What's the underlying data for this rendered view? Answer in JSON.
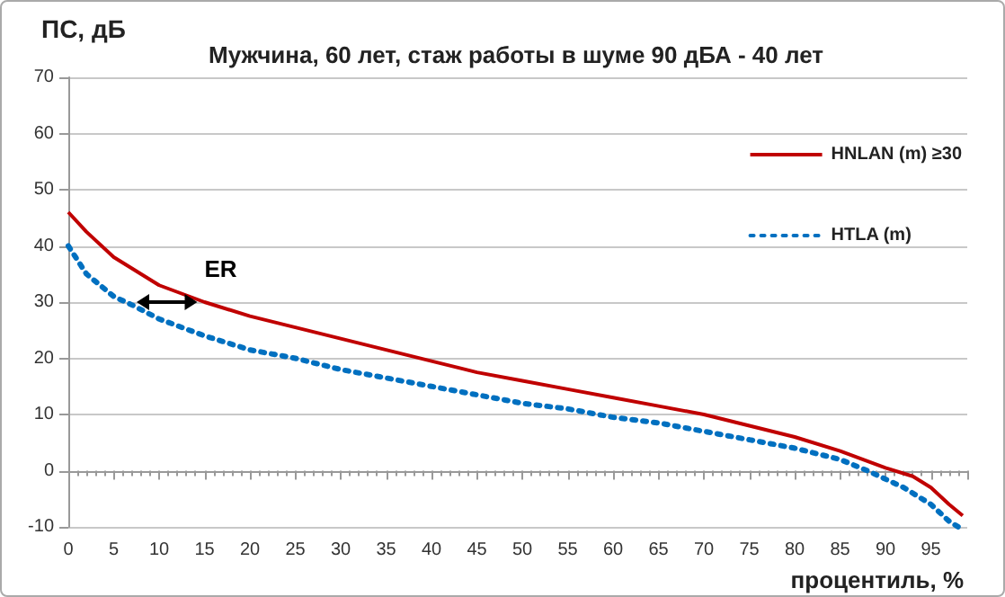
{
  "chart_data": {
    "type": "line",
    "title": "Мужчина, 60 лет, стаж работы в шуме 90 дБА - 40 лет",
    "xlabel": "процентиль, %",
    "ylabel": "ПС, дБ",
    "annotations": [
      "ER"
    ],
    "series": [
      {
        "name": "HNLAN (m) ≥30",
        "color": "#c00000",
        "line_style": "solid",
        "x": [
          0,
          2,
          5,
          10,
          15,
          20,
          25,
          30,
          35,
          40,
          45,
          50,
          55,
          60,
          65,
          70,
          75,
          80,
          85,
          90,
          93,
          95,
          97,
          98.5
        ],
        "values": [
          46,
          42.5,
          38,
          33,
          30,
          27.5,
          25.5,
          23.5,
          21.5,
          19.5,
          17.5,
          16,
          14.5,
          13,
          11.5,
          10,
          8,
          6,
          3.5,
          0.5,
          -1,
          -3,
          -6,
          -8
        ]
      },
      {
        "name": "HTLA (m)",
        "color": "#0070c0",
        "line_style": "dotted",
        "x": [
          0,
          2,
          5,
          7,
          10,
          15,
          20,
          25,
          30,
          35,
          40,
          45,
          50,
          55,
          60,
          65,
          70,
          75,
          80,
          85,
          88,
          90,
          92,
          95,
          97,
          98
        ],
        "values": [
          40,
          35,
          31,
          29.5,
          27,
          24,
          21.5,
          20,
          18,
          16.5,
          15,
          13.5,
          12,
          11,
          9.5,
          8.5,
          7,
          5.5,
          4,
          2,
          0,
          -1.5,
          -3,
          -6,
          -9,
          -10
        ]
      }
    ],
    "xlim": [
      0,
      99
    ],
    "xticks": [
      0,
      5,
      10,
      15,
      20,
      25,
      30,
      35,
      40,
      45,
      50,
      55,
      60,
      65,
      70,
      75,
      80,
      85,
      90,
      95
    ],
    "ylim": [
      -10,
      70
    ],
    "yticks": [
      -10,
      0,
      10,
      20,
      30,
      40,
      50,
      60,
      70
    ],
    "grid": "y",
    "legend": "right",
    "marker": "none"
  }
}
